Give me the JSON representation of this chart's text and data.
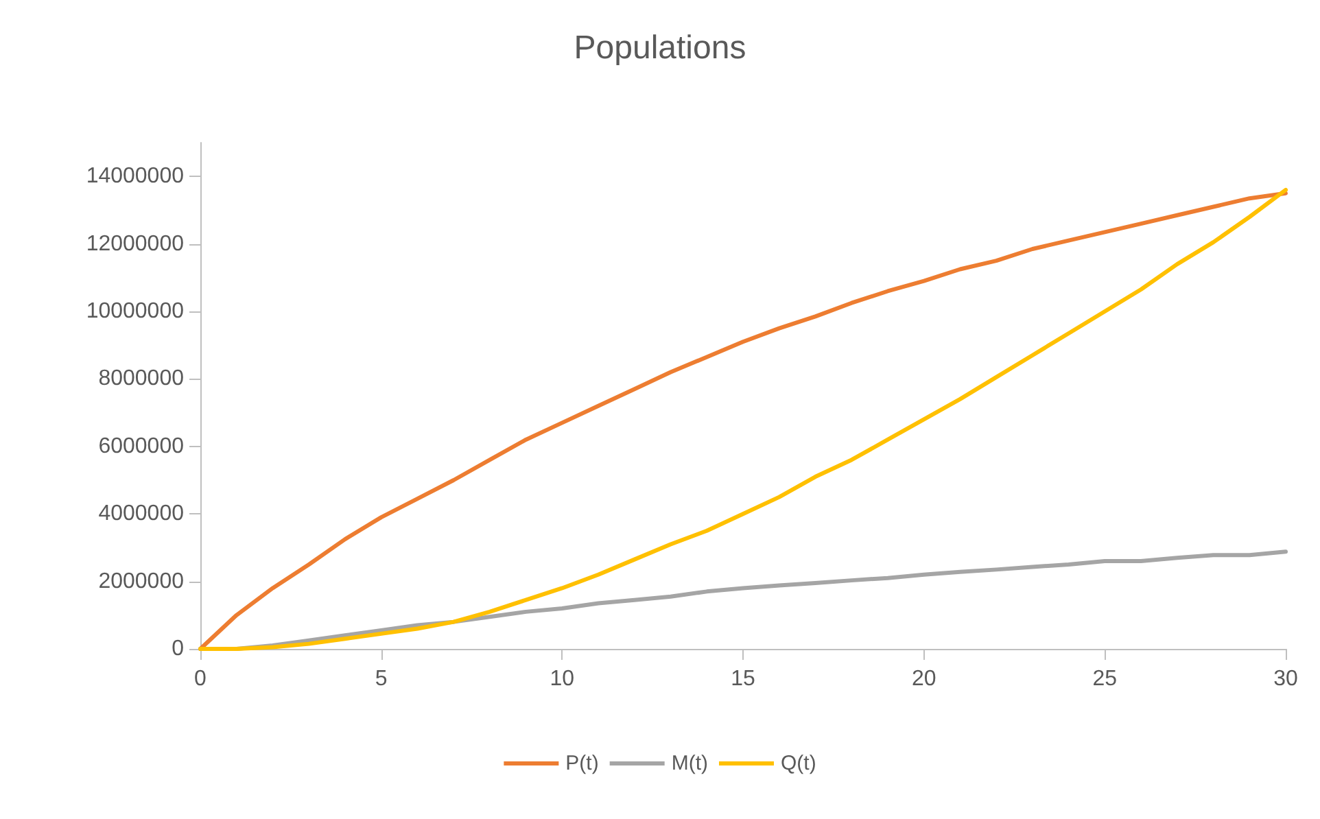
{
  "chart_data": {
    "type": "line",
    "title": "Populations",
    "x": [
      0,
      1,
      2,
      3,
      4,
      5,
      6,
      7,
      8,
      9,
      10,
      11,
      12,
      13,
      14,
      15,
      16,
      17,
      18,
      19,
      20,
      21,
      22,
      23,
      24,
      25,
      26,
      27,
      28,
      29,
      30
    ],
    "series": [
      {
        "name": "P(t)",
        "color": "#ed7d31",
        "values": [
          0,
          1000000,
          1800000,
          2500000,
          3250000,
          3900000,
          4450000,
          5000000,
          5600000,
          6200000,
          6700000,
          7200000,
          7700000,
          8200000,
          8650000,
          9100000,
          9500000,
          9850000,
          10250000,
          10600000,
          10900000,
          11250000,
          11500000,
          11850000,
          12100000,
          12350000,
          12600000,
          12850000,
          13100000,
          13350000,
          13500000
        ]
      },
      {
        "name": "M(t)",
        "color": "#a5a5a5",
        "values": [
          0,
          0,
          100000,
          250000,
          400000,
          550000,
          700000,
          800000,
          950000,
          1100000,
          1200000,
          1350000,
          1450000,
          1550000,
          1700000,
          1800000,
          1880000,
          1950000,
          2030000,
          2100000,
          2200000,
          2280000,
          2350000,
          2430000,
          2500000,
          2600000,
          2600000,
          2700000,
          2780000,
          2780000,
          2880000
        ]
      },
      {
        "name": "Q(t)",
        "color": "#ffc000",
        "values": [
          0,
          0,
          50000,
          150000,
          300000,
          450000,
          600000,
          800000,
          1100000,
          1450000,
          1800000,
          2200000,
          2650000,
          3100000,
          3500000,
          4000000,
          4500000,
          5100000,
          5600000,
          6200000,
          6800000,
          7400000,
          8050000,
          8700000,
          9350000,
          10000000,
          10650000,
          11400000,
          12050000,
          12800000,
          13600000
        ]
      }
    ],
    "xlim": [
      0,
      30
    ],
    "xticks": [
      0,
      5,
      10,
      15,
      20,
      25,
      30
    ],
    "ylim": [
      0,
      15000000
    ],
    "yticks": [
      0,
      2000000,
      4000000,
      6000000,
      8000000,
      10000000,
      12000000,
      14000000
    ],
    "grid": false,
    "legend": "bottom",
    "marker": "none",
    "line_style": "solid"
  }
}
